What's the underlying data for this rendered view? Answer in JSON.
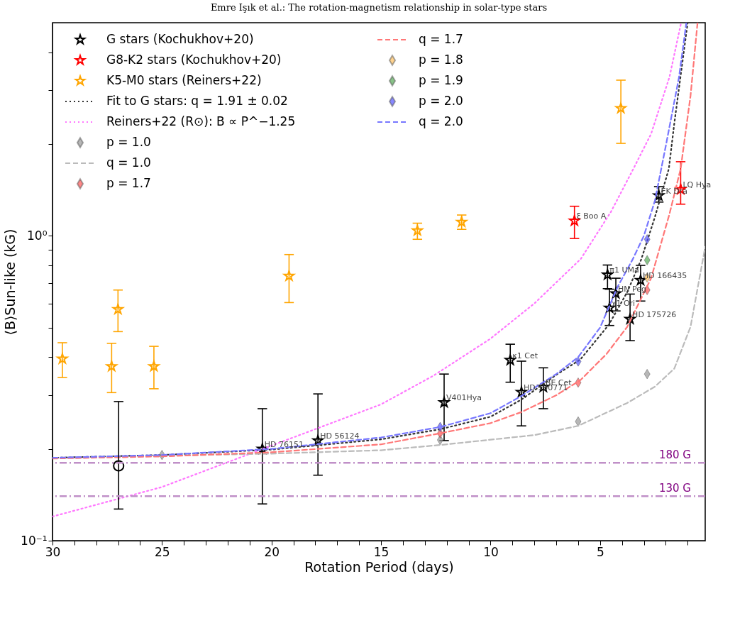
{
  "chart_data": {
    "type": "scatter",
    "title": "Emre Işık et al.: The rotation-magnetism relationship in solar-type stars",
    "xlabel": "Rotation Period (days)",
    "ylabel": "⟨B⟩Sun-like (kG)",
    "log": "y",
    "grid": false,
    "legend": "top left",
    "xlim": [
      30,
      0.2
    ],
    "ylim": [
      0.1,
      5
    ],
    "xticks": [
      30,
      25,
      20,
      15,
      10,
      5,
      {
        "value": 29,
        "label": null
      },
      {
        "value": 28,
        "label": null
      },
      {
        "value": 27,
        "label": null
      },
      {
        "value": 26,
        "label": null
      },
      {
        "value": 24,
        "label": null
      },
      {
        "value": 23,
        "label": null
      },
      {
        "value": 22,
        "label": null
      },
      {
        "value": 21,
        "label": null
      },
      {
        "value": 19,
        "label": null
      },
      {
        "value": 18,
        "label": null
      },
      {
        "value": 17,
        "label": null
      },
      {
        "value": 16,
        "label": null
      },
      {
        "value": 14,
        "label": null
      },
      {
        "value": 13,
        "label": null
      },
      {
        "value": 12,
        "label": null
      },
      {
        "value": 11,
        "label": null
      },
      {
        "value": 9,
        "label": null
      },
      {
        "value": 8,
        "label": null
      },
      {
        "value": 7,
        "label": null
      },
      {
        "value": 6,
        "label": null
      },
      {
        "value": 4,
        "label": null
      },
      {
        "value": 3,
        "label": null
      },
      {
        "value": 2,
        "label": null
      },
      {
        "value": 1,
        "label": null
      }
    ],
    "yticks": [
      {
        "value": 0.1,
        "label": "10⁻¹"
      },
      {
        "value": 1,
        "label": "10⁰"
      },
      {
        "value": 0.2,
        "label": null
      },
      {
        "value": 0.3,
        "label": null
      },
      {
        "value": 0.4,
        "label": null
      },
      {
        "value": 0.5,
        "label": null
      },
      {
        "value": 0.6,
        "label": null
      },
      {
        "value": 0.7,
        "label": null
      },
      {
        "value": 0.8,
        "label": null
      },
      {
        "value": 0.9,
        "label": null
      },
      {
        "value": 2,
        "label": null
      },
      {
        "value": 3,
        "label": null
      },
      {
        "value": 4,
        "label": null
      }
    ],
    "series": [
      {
        "name": "G stars (Kochukhov+20)",
        "type": "scatter",
        "marker": "star",
        "color": "#000000",
        "x": [
          20.42,
          17.88,
          12.12,
          9.1,
          8.59,
          7.59,
          4.66,
          4.28,
          4.57,
          3.63,
          3.15,
          2.32
        ],
        "values": [
          0.2,
          0.213,
          0.284,
          0.391,
          0.307,
          0.319,
          0.745,
          0.647,
          0.58,
          0.533,
          0.715,
          1.355
        ],
        "errors": [
          [
            0.132,
            0.271
          ],
          [
            0.164,
            0.303
          ],
          [
            0.213,
            0.352
          ],
          [
            0.331,
            0.441
          ],
          [
            0.238,
            0.388
          ],
          [
            0.271,
            0.369
          ],
          [
            0.671,
            0.802
          ],
          [
            0.567,
            0.726
          ],
          [
            0.508,
            0.668
          ],
          [
            0.453,
            0.644
          ],
          [
            0.611,
            0.8
          ],
          [
            1.29,
            1.45
          ]
        ]
      },
      {
        "name": "G8-K2 stars (Kochukhov+20)",
        "type": "scatter",
        "marker": "star",
        "color": "#ff0000",
        "x": [
          6.17,
          1.32
        ],
        "values": [
          1.12,
          1.42
        ],
        "errors": [
          [
            0.98,
            1.25
          ],
          [
            1.27,
            1.75
          ]
        ]
      },
      {
        "name": "K5-M0 stars (Reiners+22)",
        "type": "scatter",
        "marker": "star",
        "color": "#ffa500",
        "x": [
          29.55,
          27.3,
          27.01,
          25.37,
          19.2,
          13.34,
          11.32,
          4.05
        ],
        "values": [
          0.395,
          0.373,
          0.574,
          0.373,
          0.738,
          1.04,
          1.11,
          2.62
        ],
        "errors": [
          [
            0.343,
            0.446
          ],
          [
            0.306,
            0.444
          ],
          [
            0.485,
            0.664
          ],
          [
            0.315,
            0.434
          ],
          [
            0.604,
            0.868
          ],
          [
            0.974,
            1.1
          ],
          [
            1.05,
            1.17
          ],
          [
            2.01,
            3.24
          ]
        ]
      },
      {
        "name": "Fit to G stars: q = 1.91 ± 0.02",
        "type": "line",
        "line_style": "dotted",
        "color": "#333333",
        "x": [
          30,
          25,
          20,
          15,
          12.3,
          10,
          8.6,
          7,
          5.9,
          4.6,
          3.76,
          3.12,
          2.5,
          1.86,
          1.61,
          1.0
        ],
        "values": [
          0.187,
          0.191,
          0.199,
          0.215,
          0.232,
          0.255,
          0.29,
          0.35,
          0.393,
          0.511,
          0.654,
          0.837,
          1.15,
          1.66,
          2.34,
          5.0
        ]
      },
      {
        "name": "Reiners+22 (R⊙): B ∝ P^−1.25",
        "type": "line",
        "line_style": "dotted",
        "color": "#ff77ff",
        "x": [
          30,
          25,
          20,
          15,
          12.6,
          10,
          8,
          5.88,
          4.5,
          3.44,
          2.67,
          1.83,
          1.3
        ],
        "values": [
          0.12,
          0.15,
          0.205,
          0.28,
          0.348,
          0.46,
          0.6,
          0.84,
          1.2,
          1.68,
          2.16,
          3.32,
          5.0
        ]
      },
      {
        "name": "p = 1.0",
        "type": "scatter",
        "marker": "diamond",
        "color": "#999999",
        "x": [
          25.0,
          12.3,
          6.0,
          2.85
        ],
        "values": [
          0.191,
          0.214,
          0.246,
          0.352
        ]
      },
      {
        "name": "q = 1.0",
        "type": "line",
        "line_style": "dashed",
        "color": "#bbbbbb",
        "x": [
          30,
          25,
          20,
          15,
          12.3,
          8,
          6,
          3.76,
          2.5,
          1.61,
          0.87,
          0.2
        ],
        "values": [
          0.187,
          0.19,
          0.193,
          0.198,
          0.206,
          0.222,
          0.238,
          0.283,
          0.32,
          0.367,
          0.503,
          0.92
        ]
      },
      {
        "name": "p = 1.7",
        "type": "scatter",
        "marker": "diamond",
        "color": "#ff5555",
        "x": [
          12.3,
          6.0,
          2.85
        ],
        "values": [
          0.225,
          0.33,
          0.664
        ]
      },
      {
        "name": "q = 1.7",
        "type": "line",
        "line_style": "dashed",
        "color": "#ff7777",
        "x": [
          30,
          25,
          20,
          15,
          12.3,
          10,
          8.6,
          7,
          5.9,
          4.7,
          3.76,
          2.67,
          1.83,
          1.32,
          0.87,
          0.55
        ],
        "values": [
          0.186,
          0.189,
          0.195,
          0.207,
          0.225,
          0.243,
          0.264,
          0.3,
          0.336,
          0.41,
          0.503,
          0.726,
          1.18,
          1.66,
          2.88,
          5.0
        ]
      },
      {
        "name": "p = 1.8",
        "type": "scatter",
        "marker": "diamond",
        "color": "#ffc060",
        "x": [
          2.85
        ],
        "values": [
          0.73
        ]
      },
      {
        "name": "p = 1.9",
        "type": "scatter",
        "marker": "diamond",
        "color": "#55aa55",
        "x": [
          2.85
        ],
        "values": [
          0.832
        ]
      },
      {
        "name": "p = 2.0",
        "type": "scatter",
        "marker": "diamond",
        "color": "#5555ff",
        "x": [
          12.3,
          6.0,
          2.85
        ],
        "values": [
          0.236,
          0.387,
          0.974
        ]
      },
      {
        "name": "q = 2.0",
        "type": "line",
        "line_style": "dashed",
        "color": "#7777ff",
        "x": [
          30,
          25,
          20,
          15,
          12.3,
          10,
          8.6,
          7,
          6,
          5,
          4.2,
          3.5,
          3,
          2.5,
          2,
          1.4,
          1.06
        ],
        "values": [
          0.187,
          0.191,
          0.2,
          0.218,
          0.236,
          0.262,
          0.298,
          0.352,
          0.4,
          0.5,
          0.68,
          0.84,
          1.0,
          1.3,
          1.97,
          3.3,
          5.0
        ]
      },
      {
        "type": "scatter",
        "marker": "circle",
        "color": "#000000",
        "x": [
          26.98
        ],
        "values": [
          0.176
        ],
        "errors": [
          [
            0.127,
            0.286
          ]
        ]
      }
    ],
    "ref_lines": [
      {
        "axis": "y",
        "value": 0.18,
        "label": "180 G",
        "color": "#c090c8",
        "line_style": "dashdot"
      },
      {
        "axis": "y",
        "value": 0.14,
        "label": "130 G",
        "color": "#c090c8",
        "line_style": "dashdot"
      }
    ],
    "annotations": [
      {
        "text": "HD 76151",
        "x": 20.42,
        "y": 0.2
      },
      {
        "text": "HD 56124",
        "x": 17.88,
        "y": 0.213
      },
      {
        "text": "V401Hya",
        "x": 12.12,
        "y": 0.284
      },
      {
        "text": "κ1 Cet",
        "x": 9.1,
        "y": 0.391
      },
      {
        "text": "HD 190771",
        "x": 8.59,
        "y": 0.307
      },
      {
        "text": "BE Cet",
        "x": 7.59,
        "y": 0.319
      },
      {
        "text": "π1 UMa",
        "x": 4.66,
        "y": 0.745
      },
      {
        "text": "HN Peg",
        "x": 4.28,
        "y": 0.647
      },
      {
        "text": "χ1 Ori",
        "x": 4.57,
        "y": 0.58
      },
      {
        "text": "HD 175726",
        "x": 3.63,
        "y": 0.533
      },
      {
        "text": "HD 166435",
        "x": 3.15,
        "y": 0.715
      },
      {
        "text": "EK Dra",
        "x": 2.32,
        "y": 1.355
      },
      {
        "text": "ξ Boo A",
        "x": 6.17,
        "y": 1.12
      },
      {
        "text": "LQ Hya",
        "x": 1.32,
        "y": 1.42
      }
    ]
  }
}
